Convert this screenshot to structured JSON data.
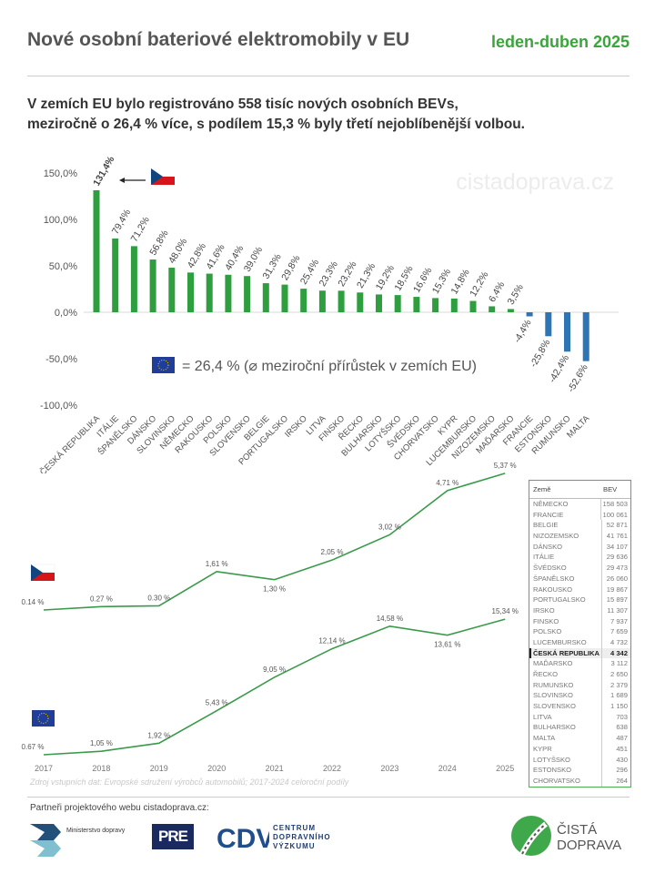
{
  "header": {
    "title": "Nové osobní bateriové elektromobily v EU",
    "period": "leden-duben 2025"
  },
  "subtitle": {
    "line1": "V zemích EU bylo registrováno 558 tisíc nových osobních BEVs,",
    "line2": "meziročně o 26,4 % více, s podílem 15,3 % byly třetí nejoblíbenější volbou."
  },
  "watermark": "cistadoprava.cz",
  "eu_note": "= 26,4 % (⌀ meziroční přírůstek v zemích EU)",
  "colors": {
    "positive": "#2e9e3e",
    "negative": "#2e75b6",
    "accent": "#3aa53a",
    "line": "#3a9a4a"
  },
  "chart_data": [
    {
      "type": "bar",
      "ylim": [
        -100,
        150
      ],
      "yticks": [
        "150,0%",
        "100,0%",
        "50,0%",
        "0,0%",
        "-50,0%",
        "-100,0%"
      ],
      "ytick_values": [
        150,
        100,
        50,
        0,
        -50,
        -100
      ],
      "categories": [
        "ČESKÁ REPUBLIKA",
        "ITÁLIE",
        "ŠPANĚLSKO",
        "DÁNSKO",
        "SLOVINSKO",
        "NĚMECKO",
        "RAKOUSKO",
        "POLSKO",
        "SLOVENSKO",
        "BELGIE",
        "PORTUGALSKO",
        "IRSKO",
        "LITVA",
        "FINSKO",
        "ŘECKO",
        "BULHARSKO",
        "LOTYŠSKO",
        "ŠVÉDSKO",
        "CHORVATSKO",
        "KYPR",
        "LUCEMBURSKO",
        "NIZOZEMSKO",
        "MAĎARSKO",
        "FRANCIE",
        "ESTONSKO",
        "RUMUNSKO",
        "MALTA"
      ],
      "values": [
        131.4,
        79.4,
        71.2,
        56.8,
        48.0,
        42.8,
        41.6,
        40.4,
        39.0,
        31.3,
        29.8,
        25.4,
        23.3,
        23.2,
        21.3,
        19.2,
        18.5,
        16.6,
        15.3,
        14.8,
        12.2,
        6.4,
        3.5,
        -4.4,
        -25.8,
        -42.4,
        -52.6
      ],
      "labels": [
        "131,4%",
        "79,4%",
        "71,2%",
        "56,8%",
        "48,0%",
        "42,8%",
        "41,6%",
        "40,4%",
        "39,0%",
        "31,3%",
        "29,8%",
        "25,4%",
        "23,3%",
        "23,2%",
        "21,3%",
        "19,2%",
        "18,5%",
        "16,6%",
        "15,3%",
        "14,8%",
        "12,2%",
        "6,4%",
        "3,5%",
        "-4,4%",
        "-25,8%",
        "-42,4%",
        "-52,6%"
      ]
    },
    {
      "type": "line",
      "x": [
        "2017",
        "2018",
        "2019",
        "2020",
        "2021",
        "2022",
        "2023",
        "2024",
        "2025"
      ],
      "series": [
        {
          "flag": "cz",
          "values": [
            0.14,
            0.27,
            0.3,
            1.61,
            1.3,
            2.05,
            3.02,
            4.71,
            5.37
          ],
          "labels": [
            "0.14 %",
            "0.27 %",
            "0.30 %",
            "1,61 %",
            "1,30 %",
            "2,05 %",
            "3,02 %",
            "4,71 %",
            "5,37 %"
          ]
        },
        {
          "flag": "eu",
          "values": [
            0.67,
            1.05,
            1.92,
            5.43,
            9.05,
            12.14,
            14.58,
            13.61,
            15.34
          ],
          "labels": [
            "0.67 %",
            "1,05 %",
            "1,92 %",
            "5,43 %",
            "9,05 %",
            "12,14 %",
            "14,58 %",
            "13,61 %",
            "15,34 %"
          ]
        }
      ]
    },
    {
      "type": "table",
      "columns": [
        "Země",
        "BEV"
      ],
      "highlight": "ČESKÁ REPUBLIKA",
      "rows": [
        [
          "NĚMECKO",
          "158 503"
        ],
        [
          "FRANCIE",
          "100 061"
        ],
        [
          "BELGIE",
          "52 871"
        ],
        [
          "NIZOZEMSKO",
          "41 761"
        ],
        [
          "DÁNSKO",
          "34 107"
        ],
        [
          "ITÁLIE",
          "29 636"
        ],
        [
          "ŠVÉDSKO",
          "29 473"
        ],
        [
          "ŠPANĚLSKO",
          "26 060"
        ],
        [
          "RAKOUSKO",
          "19 867"
        ],
        [
          "PORTUGALSKO",
          "15 897"
        ],
        [
          "IRSKO",
          "11 307"
        ],
        [
          "FINSKO",
          "7 937"
        ],
        [
          "POLSKO",
          "7 659"
        ],
        [
          "LUCEMBURSKO",
          "4 732"
        ],
        [
          "ČESKÁ REPUBLIKA",
          "4 342"
        ],
        [
          "MAĎARSKO",
          "3 112"
        ],
        [
          "ŘECKO",
          "2 650"
        ],
        [
          "RUMUNSKO",
          "2 379"
        ],
        [
          "SLOVINSKO",
          "1 689"
        ],
        [
          "SLOVENSKO",
          "1 150"
        ],
        [
          "LITVA",
          "703"
        ],
        [
          "BULHARSKO",
          "638"
        ],
        [
          "MALTA",
          "487"
        ],
        [
          "KYPR",
          "451"
        ],
        [
          "LOTYŠSKO",
          "430"
        ],
        [
          "ESTONSKO",
          "296"
        ],
        [
          "CHORVATSKO",
          "264"
        ]
      ]
    }
  ],
  "source": "Zdroj vstupních dat: Evropské sdružení výrobců automobilů; 2017-2024 celoroční podíly",
  "footer": {
    "partners": "Partneři projektového webu cistadoprava.cz:",
    "logo1": "Ministerstvo dopravy",
    "logo2": "PRE",
    "logo3": [
      "CENTRUM",
      "DOPRAVNÍHO",
      "VÝZKUMU"
    ],
    "logo4": [
      "ČISTÁ",
      "DOPRAVA"
    ]
  }
}
